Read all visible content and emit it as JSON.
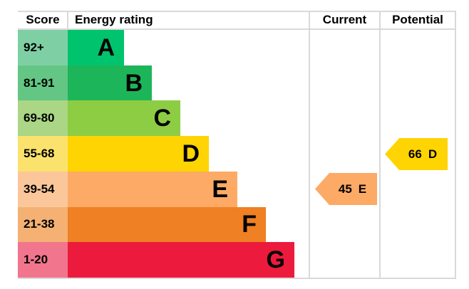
{
  "header": {
    "score": "Score",
    "energy_rating": "Energy rating",
    "current": "Current",
    "potential": "Potential"
  },
  "bands": [
    {
      "score": "92+",
      "letter": "A",
      "color": "#00c36d",
      "score_color": "#7ed0a4"
    },
    {
      "score": "81-91",
      "letter": "B",
      "color": "#1db559",
      "score_color": "#63c684"
    },
    {
      "score": "69-80",
      "letter": "C",
      "color": "#8ccd44",
      "score_color": "#aad685"
    },
    {
      "score": "55-68",
      "letter": "D",
      "color": "#fed402",
      "score_color": "#fbe26d"
    },
    {
      "score": "39-54",
      "letter": "E",
      "color": "#fcaa65",
      "score_color": "#fbc79a"
    },
    {
      "score": "21-38",
      "letter": "F",
      "color": "#ef8023",
      "score_color": "#f4b173"
    },
    {
      "score": "1-20",
      "letter": "G",
      "color": "#ec1a3d",
      "score_color": "#f1758d"
    }
  ],
  "current": {
    "value": "45",
    "letter": "E",
    "color": "#fcaa65"
  },
  "potential": {
    "value": "66",
    "letter": "D",
    "color": "#fed402"
  },
  "border_color": "#d9d9d9",
  "chart_data": {
    "type": "bar",
    "subtype": "epc-energy-rating",
    "title": "",
    "columns": [
      "Score",
      "Energy rating",
      "Current",
      "Potential"
    ],
    "categories": [
      "A",
      "B",
      "C",
      "D",
      "E",
      "F",
      "G"
    ],
    "score_ranges": [
      "92+",
      "81-91",
      "69-80",
      "55-68",
      "39-54",
      "21-38",
      "1-20"
    ],
    "band_colors": [
      "#00c36d",
      "#1db559",
      "#8ccd44",
      "#fed402",
      "#fcaa65",
      "#ef8023",
      "#ec1a3d"
    ],
    "score_cell_colors": [
      "#7ed0a4",
      "#63c684",
      "#aad685",
      "#fbe26d",
      "#fbc79a",
      "#f4b173",
      "#f1758d"
    ],
    "bar_relative_lengths": [
      1,
      2,
      3,
      4,
      5,
      6,
      7
    ],
    "markers": [
      {
        "name": "Current",
        "value": 45,
        "band": "E",
        "color": "#fcaa65",
        "column": "Current"
      },
      {
        "name": "Potential",
        "value": 66,
        "band": "D",
        "color": "#fed402",
        "column": "Potential"
      }
    ],
    "legend_position": "none",
    "grid": false
  }
}
